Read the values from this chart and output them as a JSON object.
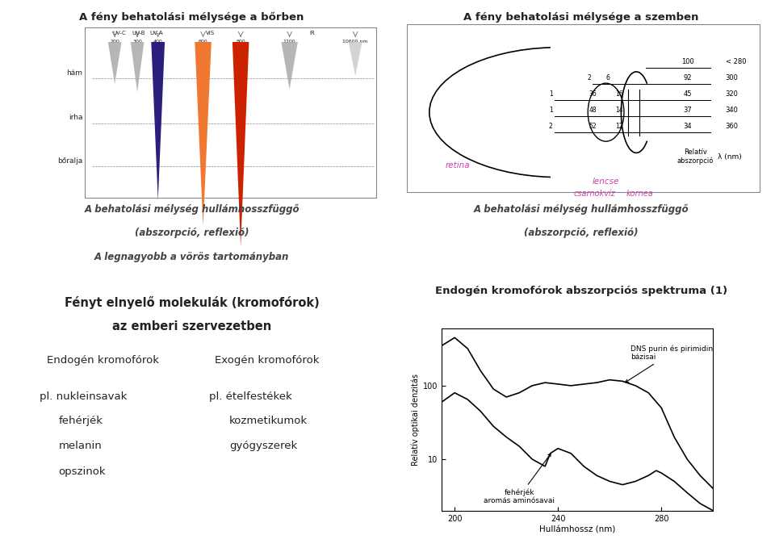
{
  "bg_color": "#FFFF99",
  "panel_bg": "#FFFF99",
  "white_color": "#FFFFFF",
  "panel1_title": "A fény behatolási mélysége a bőrben",
  "panel1_subtitle1": "A behatolási mélység hullámhosszfüggő",
  "panel1_subtitle2": "(abszorpció, reflexió)",
  "panel1_subtitle3": "A legnagyobb a vörös tartományban",
  "panel2_title": "A fény behatolási mélysége a szemben",
  "panel2_subtitle1": "A behatolási mélység hullámhosszfüggő",
  "panel2_subtitle2": "(abszorpció, reflexió)",
  "panel3_title1": "Fényt elnyelő molekulák (kromofórok)",
  "panel3_title2": "az emberi szervezetben",
  "panel3_endogen_header": "Endogén kromofórok",
  "panel3_exogen_header": "Exogén kromofórok",
  "panel3_endogen_pl": "pl. nukleinsavak",
  "panel3_endogen_items": [
    "fehérjék",
    "melanin",
    "opszinok"
  ],
  "panel3_exogen_pl": "pl. ételfestékek",
  "panel3_exogen_items": [
    "kozmetikumok",
    "gyógyszerek"
  ],
  "panel4_title": "Endogén kromofórok abszorpciós spektruma (1)",
  "panel4_label1": "DNS purin és pirimidin\nbázisai",
  "panel4_label2": "fehérjék\naromás aminósavai",
  "panel4_xlabel": "Hullámhossz (nm)",
  "panel4_ylabel": "Relatív optikai denzitás"
}
